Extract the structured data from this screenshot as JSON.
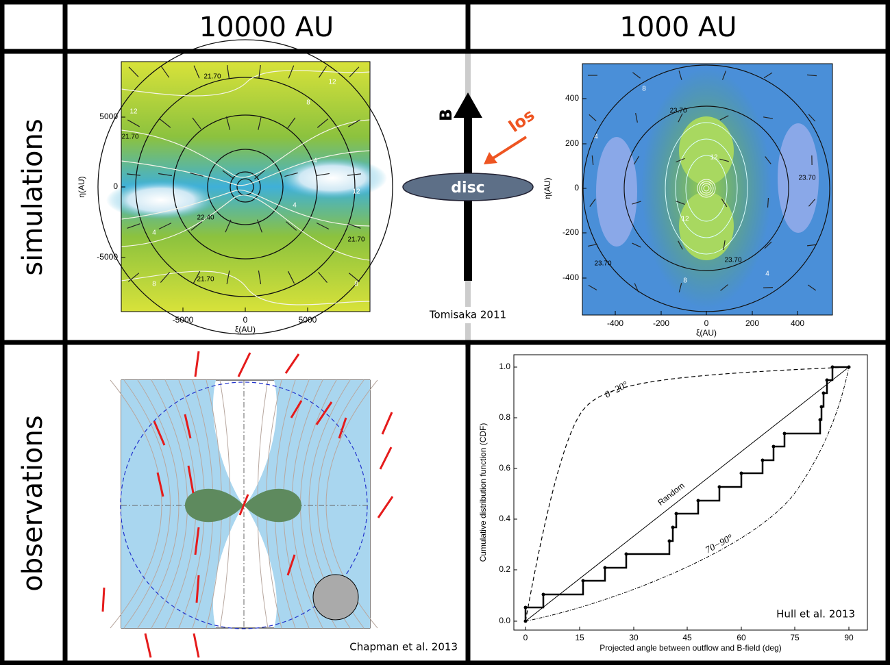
{
  "header": {
    "columns": [
      "10000 AU",
      "1000 AU"
    ]
  },
  "rows": [
    "simulations",
    "observations"
  ],
  "sim_10000": {
    "xticks": [
      "-5000",
      "0",
      "5000"
    ],
    "yticks": [
      "5000",
      "0",
      "-5000"
    ],
    "xlabel": "ξ(AU)",
    "ylabel": "η(AU)",
    "contour_labels": [
      "21.70",
      "21.70",
      "22.40",
      "21.70",
      "21.70",
      "12",
      "8",
      "4",
      "4",
      "8",
      "12",
      "12",
      "8",
      "4"
    ]
  },
  "diagram": {
    "field": "B",
    "los": "los",
    "disc": "disc",
    "credit": "Tomisaka 2011"
  },
  "sim_1000": {
    "xticks": [
      "-400",
      "-200",
      "0",
      "200",
      "400"
    ],
    "yticks": [
      "400",
      "200",
      "0",
      "-200",
      "-400"
    ],
    "xlabel": "ξ(AU)",
    "ylabel": "η(AU)",
    "contour_labels": [
      "23.70",
      "23.70",
      "23.70",
      "23.70",
      "12",
      "12",
      "8",
      "8",
      "4",
      "4"
    ]
  },
  "observations_left": {
    "credit": "Chapman et al. 2013"
  },
  "cdf": {
    "xticks": [
      "0",
      "15",
      "30",
      "45",
      "60",
      "75",
      "90"
    ],
    "yticks": [
      "0.0",
      "0.2",
      "0.4",
      "0.6",
      "0.8",
      "1.0"
    ],
    "xlabel": "Projected angle between outflow and B-field (deg)",
    "ylabel": "Cumulative distribution function (CDF)",
    "curve_labels": [
      "Random",
      "0−20°",
      "70−90°"
    ],
    "credit": "Hull et al. 2013"
  }
}
